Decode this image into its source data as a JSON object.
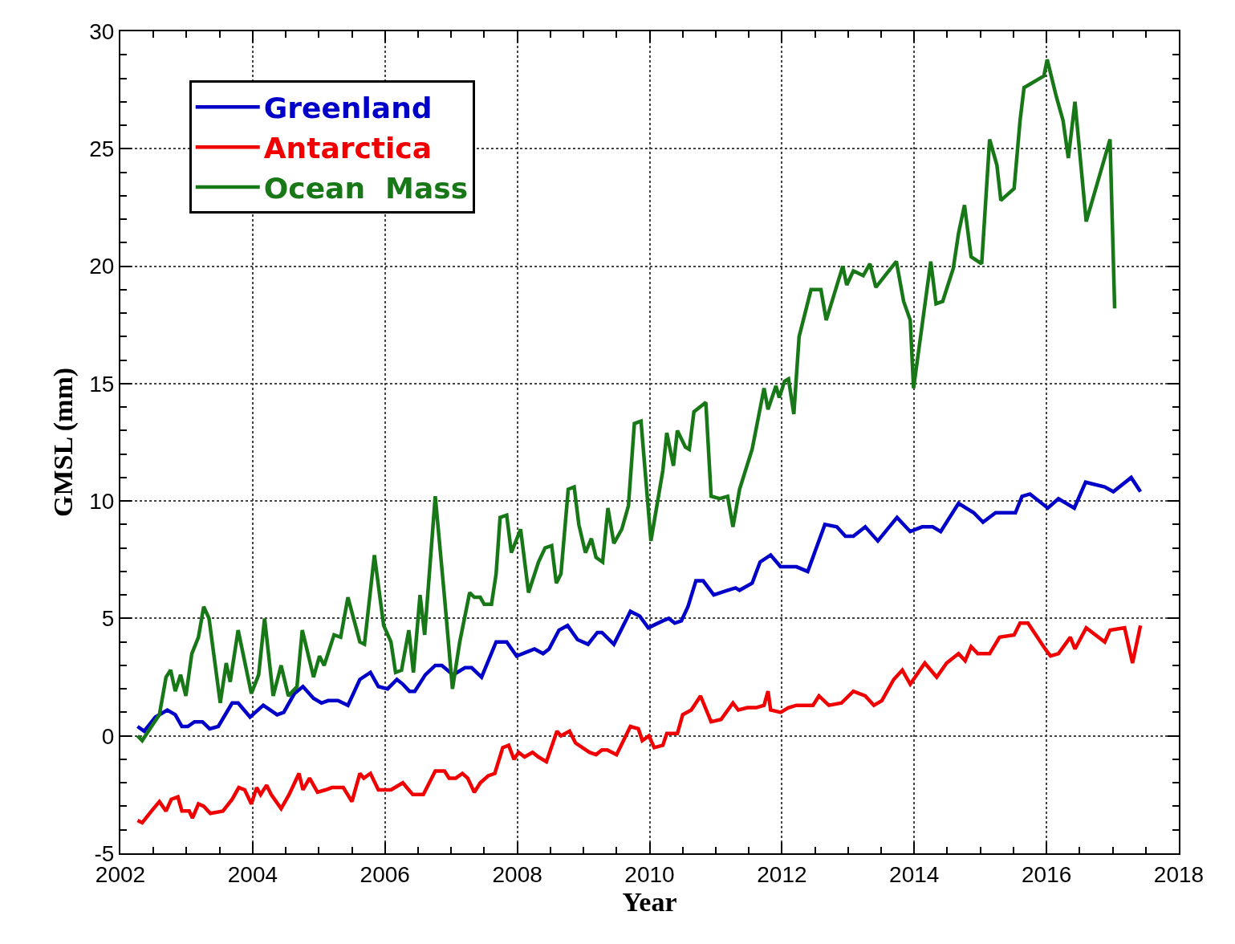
{
  "chart_data": {
    "type": "line",
    "xlabel": "Year",
    "ylabel": "GMSL (mm)",
    "xlim": [
      2002,
      2018
    ],
    "xticks": [
      2002,
      2004,
      2006,
      2008,
      2010,
      2012,
      2014,
      2016,
      2018
    ],
    "ylim": [
      -5,
      30
    ],
    "yticks": [
      -5,
      0,
      5,
      10,
      15,
      20,
      25,
      30
    ],
    "grid": true,
    "legend": "top left",
    "marker": "none",
    "line_style": "solid",
    "series": [
      {
        "name": "Greenland",
        "color": "#0000c8",
        "x": [
          2002.26,
          2002.36,
          2002.53,
          2002.71,
          2002.83,
          2002.93,
          2003.02,
          2003.12,
          2003.24,
          2003.35,
          2003.48,
          2003.69,
          2003.78,
          2003.96,
          2004.16,
          2004.37,
          2004.47,
          2004.63,
          2004.76,
          2004.92,
          2005.04,
          2005.14,
          2005.29,
          2005.44,
          2005.62,
          2005.78,
          2005.9,
          2006.04,
          2006.18,
          2006.27,
          2006.37,
          2006.45,
          2006.61,
          2006.76,
          2006.86,
          2007.03,
          2007.21,
          2007.31,
          2007.46,
          2007.68,
          2007.84,
          2007.99,
          2008.17,
          2008.26,
          2008.39,
          2008.48,
          2008.63,
          2008.76,
          2008.91,
          2009.07,
          2009.21,
          2009.28,
          2009.46,
          2009.71,
          2009.85,
          2009.98,
          2010.2,
          2010.29,
          2010.38,
          2010.48,
          2010.58,
          2010.7,
          2010.81,
          2010.97,
          2011.18,
          2011.3,
          2011.36,
          2011.55,
          2011.67,
          2011.83,
          2011.98,
          2012.16,
          2012.22,
          2012.39,
          2012.65,
          2012.83,
          2012.96,
          2013.08,
          2013.26,
          2013.45,
          2013.74,
          2013.94,
          2014.12,
          2014.28,
          2014.4,
          2014.67,
          2014.9,
          2015.04,
          2015.23,
          2015.35,
          2015.53,
          2015.63,
          2015.75,
          2016.02,
          2016.18,
          2016.42,
          2016.59,
          2016.88,
          2017.01,
          2017.28,
          2017.42
        ],
        "values": [
          0.4,
          0.2,
          0.8,
          1.1,
          0.9,
          0.4,
          0.4,
          0.6,
          0.6,
          0.3,
          0.4,
          1.4,
          1.4,
          0.8,
          1.3,
          0.9,
          1.0,
          1.8,
          2.1,
          1.6,
          1.4,
          1.5,
          1.5,
          1.3,
          2.4,
          2.7,
          2.1,
          2.0,
          2.4,
          2.2,
          1.9,
          1.9,
          2.6,
          3.0,
          3.0,
          2.6,
          2.9,
          2.9,
          2.5,
          4.0,
          4.0,
          3.4,
          3.6,
          3.7,
          3.5,
          3.7,
          4.5,
          4.7,
          4.1,
          3.9,
          4.4,
          4.4,
          3.9,
          5.3,
          5.1,
          4.6,
          4.9,
          5.0,
          4.8,
          4.9,
          5.5,
          6.6,
          6.6,
          6.0,
          6.2,
          6.3,
          6.2,
          6.5,
          7.4,
          7.7,
          7.2,
          7.2,
          7.2,
          7.0,
          9.0,
          8.9,
          8.5,
          8.5,
          8.9,
          8.3,
          9.3,
          8.7,
          8.9,
          8.9,
          8.7,
          9.9,
          9.5,
          9.1,
          9.5,
          9.5,
          9.5,
          10.2,
          10.3,
          9.7,
          10.1,
          9.7,
          10.8,
          10.6,
          10.4,
          11.0,
          10.4
        ]
      },
      {
        "name": "Antarctica",
        "color": "#f00000",
        "x": [
          2002.26,
          2002.33,
          2002.47,
          2002.59,
          2002.69,
          2002.77,
          2002.87,
          2002.93,
          2003.04,
          2003.09,
          2003.18,
          2003.26,
          2003.36,
          2003.55,
          2003.69,
          2003.79,
          2003.88,
          2003.98,
          2004.06,
          2004.12,
          2004.21,
          2004.28,
          2004.43,
          2004.55,
          2004.7,
          2004.76,
          2004.86,
          2004.98,
          2005.1,
          2005.2,
          2005.37,
          2005.5,
          2005.62,
          2005.68,
          2005.78,
          2005.9,
          2006.09,
          2006.27,
          2006.42,
          2006.58,
          2006.76,
          2006.9,
          2006.97,
          2007.07,
          2007.17,
          2007.25,
          2007.35,
          2007.44,
          2007.56,
          2007.66,
          2007.78,
          2007.87,
          2007.95,
          2008.02,
          2008.11,
          2008.23,
          2008.32,
          2008.44,
          2008.6,
          2008.66,
          2008.79,
          2008.88,
          2009.09,
          2009.19,
          2009.28,
          2009.36,
          2009.5,
          2009.71,
          2009.83,
          2009.89,
          2009.99,
          2010.07,
          2010.2,
          2010.26,
          2010.42,
          2010.5,
          2010.63,
          2010.77,
          2010.93,
          2011.08,
          2011.26,
          2011.34,
          2011.48,
          2011.61,
          2011.73,
          2011.79,
          2011.83,
          2011.98,
          2012.1,
          2012.22,
          2012.34,
          2012.47,
          2012.56,
          2012.71,
          2012.9,
          2013.08,
          2013.26,
          2013.39,
          2013.51,
          2013.69,
          2013.82,
          2013.94,
          2014.16,
          2014.34,
          2014.49,
          2014.67,
          2014.77,
          2014.86,
          2014.96,
          2015.14,
          2015.29,
          2015.51,
          2015.6,
          2015.72,
          2015.98,
          2016.06,
          2016.18,
          2016.36,
          2016.43,
          2016.6,
          2016.88,
          2016.96,
          2017.18,
          2017.3,
          2017.42
        ],
        "values": [
          -3.6,
          -3.7,
          -3.2,
          -2.8,
          -3.2,
          -2.7,
          -2.6,
          -3.2,
          -3.2,
          -3.5,
          -2.9,
          -3.0,
          -3.3,
          -3.2,
          -2.7,
          -2.2,
          -2.3,
          -2.9,
          -2.2,
          -2.5,
          -2.1,
          -2.5,
          -3.1,
          -2.5,
          -1.6,
          -2.3,
          -1.8,
          -2.4,
          -2.3,
          -2.2,
          -2.2,
          -2.8,
          -1.6,
          -1.8,
          -1.6,
          -2.3,
          -2.3,
          -2.0,
          -2.5,
          -2.5,
          -1.5,
          -1.5,
          -1.8,
          -1.8,
          -1.6,
          -1.8,
          -2.4,
          -2.0,
          -1.7,
          -1.6,
          -0.5,
          -0.4,
          -1.0,
          -0.7,
          -0.9,
          -0.7,
          -0.9,
          -1.1,
          0.2,
          0.0,
          0.2,
          -0.3,
          -0.7,
          -0.8,
          -0.6,
          -0.6,
          -0.8,
          0.4,
          0.3,
          -0.2,
          0.0,
          -0.5,
          -0.4,
          0.1,
          0.1,
          0.9,
          1.1,
          1.7,
          0.6,
          0.7,
          1.4,
          1.1,
          1.2,
          1.2,
          1.3,
          1.9,
          1.1,
          1.0,
          1.2,
          1.3,
          1.3,
          1.3,
          1.7,
          1.3,
          1.4,
          1.9,
          1.7,
          1.3,
          1.5,
          2.4,
          2.8,
          2.2,
          3.1,
          2.5,
          3.1,
          3.5,
          3.2,
          3.8,
          3.5,
          3.5,
          4.2,
          4.3,
          4.8,
          4.8,
          3.7,
          3.4,
          3.5,
          4.2,
          3.7,
          4.6,
          4.0,
          4.5,
          4.6,
          3.1,
          4.7
        ]
      },
      {
        "name": "Ocean  Mass",
        "color": "#187818",
        "x": [
          2002.26,
          2002.33,
          2002.47,
          2002.59,
          2002.69,
          2002.76,
          2002.83,
          2002.91,
          2002.99,
          2003.08,
          2003.18,
          2003.26,
          2003.34,
          2003.51,
          2003.6,
          2003.66,
          2003.78,
          2003.98,
          2004.09,
          2004.18,
          2004.31,
          2004.43,
          2004.54,
          2004.67,
          2004.75,
          2004.92,
          2005.01,
          2005.08,
          2005.23,
          2005.33,
          2005.44,
          2005.62,
          2005.69,
          2005.84,
          2005.98,
          2006.09,
          2006.16,
          2006.25,
          2006.36,
          2006.43,
          2006.53,
          2006.6,
          2006.76,
          2006.9,
          2007.02,
          2007.13,
          2007.28,
          2007.35,
          2007.44,
          2007.5,
          2007.61,
          2007.68,
          2007.74,
          2007.84,
          2007.91,
          2008.05,
          2008.17,
          2008.32,
          2008.42,
          2008.52,
          2008.59,
          2008.66,
          2008.77,
          2008.86,
          2008.93,
          2009.03,
          2009.12,
          2009.19,
          2009.29,
          2009.37,
          2009.46,
          2009.58,
          2009.68,
          2009.77,
          2009.87,
          2010.02,
          2010.2,
          2010.26,
          2010.36,
          2010.42,
          2010.54,
          2010.6,
          2010.67,
          2010.85,
          2010.93,
          2011.06,
          2011.18,
          2011.26,
          2011.36,
          2011.55,
          2011.73,
          2011.79,
          2011.91,
          2011.96,
          2012.04,
          2012.1,
          2012.18,
          2012.26,
          2012.44,
          2012.59,
          2012.67,
          2012.92,
          2012.98,
          2013.08,
          2013.23,
          2013.33,
          2013.42,
          2013.73,
          2013.84,
          2013.94,
          2013.99,
          2014.25,
          2014.33,
          2014.43,
          2014.59,
          2014.67,
          2014.76,
          2014.86,
          2015.02,
          2015.14,
          2015.25,
          2015.31,
          2015.51,
          2015.6,
          2015.66,
          2015.96,
          2016.01,
          2016.15,
          2016.25,
          2016.33,
          2016.43,
          2016.6,
          2016.96,
          2017.03
        ],
        "values": [
          0.0,
          -0.2,
          0.4,
          0.9,
          2.5,
          2.8,
          1.9,
          2.6,
          1.7,
          3.5,
          4.2,
          5.5,
          5.0,
          1.4,
          3.1,
          2.3,
          4.5,
          1.8,
          2.6,
          5.0,
          1.7,
          3.0,
          1.7,
          2.1,
          4.5,
          2.5,
          3.4,
          3.0,
          4.3,
          4.2,
          5.9,
          4.0,
          3.9,
          7.7,
          4.7,
          4.0,
          2.7,
          2.8,
          4.5,
          2.7,
          6.0,
          4.3,
          10.2,
          5.9,
          2.0,
          4.0,
          6.1,
          5.9,
          5.9,
          5.6,
          5.6,
          6.9,
          9.3,
          9.4,
          7.8,
          8.8,
          6.1,
          7.4,
          8.0,
          8.1,
          6.5,
          6.9,
          10.5,
          10.6,
          9.0,
          7.8,
          8.4,
          7.6,
          7.4,
          9.7,
          8.2,
          8.8,
          9.8,
          13.3,
          13.4,
          8.3,
          11.3,
          12.9,
          11.5,
          13.0,
          12.3,
          12.2,
          13.8,
          14.2,
          10.2,
          10.1,
          10.2,
          8.9,
          10.5,
          12.2,
          14.8,
          13.9,
          14.9,
          14.4,
          15.1,
          15.2,
          13.7,
          17.0,
          19.0,
          19.0,
          17.7,
          20.0,
          19.2,
          19.8,
          19.6,
          20.1,
          19.1,
          20.2,
          18.5,
          17.7,
          14.8,
          20.2,
          18.4,
          18.5,
          19.9,
          21.4,
          22.6,
          20.4,
          20.1,
          25.4,
          24.3,
          22.8,
          23.3,
          26.2,
          27.6,
          28.1,
          28.8,
          27.2,
          26.2,
          24.6,
          27.0,
          21.9,
          25.4,
          18.2
        ]
      }
    ]
  }
}
